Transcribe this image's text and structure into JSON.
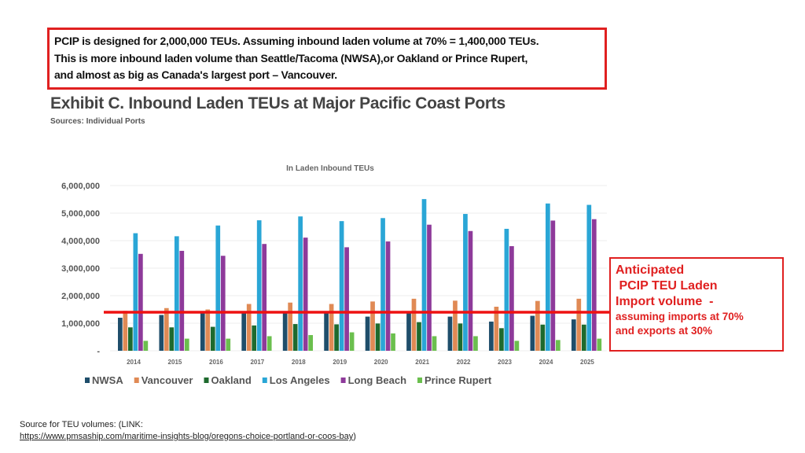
{
  "note": {
    "lines": [
      "PCIP is designed for 2,000,000 TEUs. Assuming inbound laden volume at 70% = 1,400,000 TEUs.",
      "This is more inbound laden volume than Seattle/Tacoma (NWSA),or Oakland or Prince Rupert,",
      "and almost as big as Canada's largest port – Vancouver."
    ]
  },
  "exhibit": {
    "title": "Exhibit C. Inbound Laden TEUs at Major Pacific Coast Ports",
    "sources": "Sources: Individual Ports"
  },
  "callout": {
    "line1": "Anticipated",
    "line2": " PCIP TEU Laden",
    "line3": "Import volume  -",
    "line4": "assuming imports at 70%",
    "line5": "and exports at 30%"
  },
  "footer": {
    "label": "Source for TEU volumes: (LINK:",
    "link": "https://www.pmsaship.com/maritime-insights-blog/oregons-choice-portland-or-coos-bay",
    "close": ")"
  },
  "chart_data": {
    "type": "bar",
    "title": "In Laden Inbound TEUs",
    "xlabel": "",
    "ylabel": "",
    "ylim": [
      0,
      6000000
    ],
    "yticks": [
      0,
      1000000,
      2000000,
      3000000,
      4000000,
      5000000,
      6000000
    ],
    "ytick_labels": [
      "-",
      "1,000,000",
      "2,000,000",
      "3,000,000",
      "4,000,000",
      "5,000,000",
      "6,000,000"
    ],
    "grid": true,
    "legend_position": "bottom",
    "categories": [
      "2014",
      "2015",
      "2016",
      "2017",
      "2018",
      "2019",
      "2020",
      "2021",
      "2022",
      "2023",
      "2024",
      "2025"
    ],
    "series": [
      {
        "name": "NWSA",
        "color": "#1f4e6b",
        "values": [
          1200000,
          1300000,
          1400000,
          1400000,
          1400000,
          1400000,
          1240000,
          1400000,
          1240000,
          1060000,
          1270000,
          1140000
        ]
      },
      {
        "name": "Vancouver",
        "color": "#e08a55",
        "values": [
          1450000,
          1550000,
          1500000,
          1700000,
          1750000,
          1700000,
          1790000,
          1890000,
          1820000,
          1600000,
          1810000,
          1890000
        ]
      },
      {
        "name": "Oakland",
        "color": "#1e6a2e",
        "values": [
          850000,
          850000,
          870000,
          920000,
          970000,
          960000,
          990000,
          1040000,
          990000,
          820000,
          950000,
          950000
        ]
      },
      {
        "name": "Los Angeles",
        "color": "#2aa6d6",
        "values": [
          4270000,
          4160000,
          4550000,
          4740000,
          4880000,
          4710000,
          4820000,
          5510000,
          4970000,
          4430000,
          5350000,
          5300000
        ]
      },
      {
        "name": "Long Beach",
        "color": "#8e3a9a",
        "values": [
          3520000,
          3630000,
          3450000,
          3880000,
          4110000,
          3760000,
          3970000,
          4580000,
          4350000,
          3800000,
          4730000,
          4780000
        ]
      },
      {
        "name": "Prince Rupert",
        "color": "#6bbf4e",
        "values": [
          360000,
          440000,
          440000,
          530000,
          570000,
          670000,
          630000,
          530000,
          530000,
          360000,
          390000,
          440000
        ]
      }
    ],
    "reference_line": {
      "value": 1400000,
      "color": "#ee1111"
    }
  }
}
